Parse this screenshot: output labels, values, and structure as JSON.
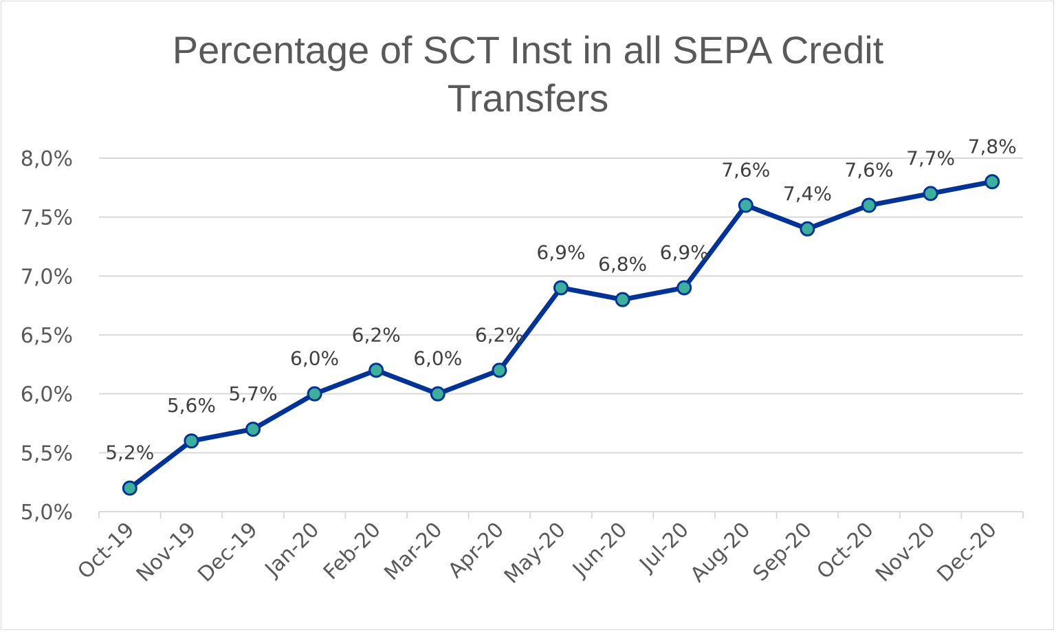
{
  "chart_data": {
    "type": "line",
    "title": "Percentage of SCT Inst in all SEPA Credit Transfers",
    "title_lines": [
      "Percentage of SCT Inst in all SEPA Credit",
      "Transfers"
    ],
    "categories": [
      "Oct-19",
      "Nov-19",
      "Dec-19",
      "Jan-20",
      "Feb-20",
      "Mar-20",
      "Apr-20",
      "May-20",
      "Jun-20",
      "Jul-20",
      "Aug-20",
      "Sep-20",
      "Oct-20",
      "Nov-20",
      "Dec-20"
    ],
    "values": [
      5.2,
      5.6,
      5.7,
      6.0,
      6.2,
      6.0,
      6.2,
      6.9,
      6.8,
      6.9,
      7.6,
      7.4,
      7.6,
      7.7,
      7.8
    ],
    "data_labels": [
      "5,2%",
      "5,6%",
      "5,7%",
      "6,0%",
      "6,2%",
      "6,0%",
      "6,2%",
      "6,9%",
      "6,8%",
      "6,9%",
      "7,6%",
      "7,4%",
      "7,6%",
      "7,7%",
      "7,8%"
    ],
    "y_ticks": [
      5.0,
      5.5,
      6.0,
      6.5,
      7.0,
      7.5,
      8.0
    ],
    "y_tick_labels": [
      "5,0%",
      "5,5%",
      "6,0%",
      "6,5%",
      "7,0%",
      "7,5%",
      "8,0%"
    ],
    "ylim": [
      5.0,
      8.0
    ],
    "xlabel": "",
    "ylabel": "",
    "grid": "horizontal",
    "legend": "none",
    "colors": {
      "line": "#003399",
      "marker_fill": "#3BB09B",
      "marker_edge": "#003399",
      "grid": "#d9d9d9",
      "text": "#595959"
    }
  }
}
